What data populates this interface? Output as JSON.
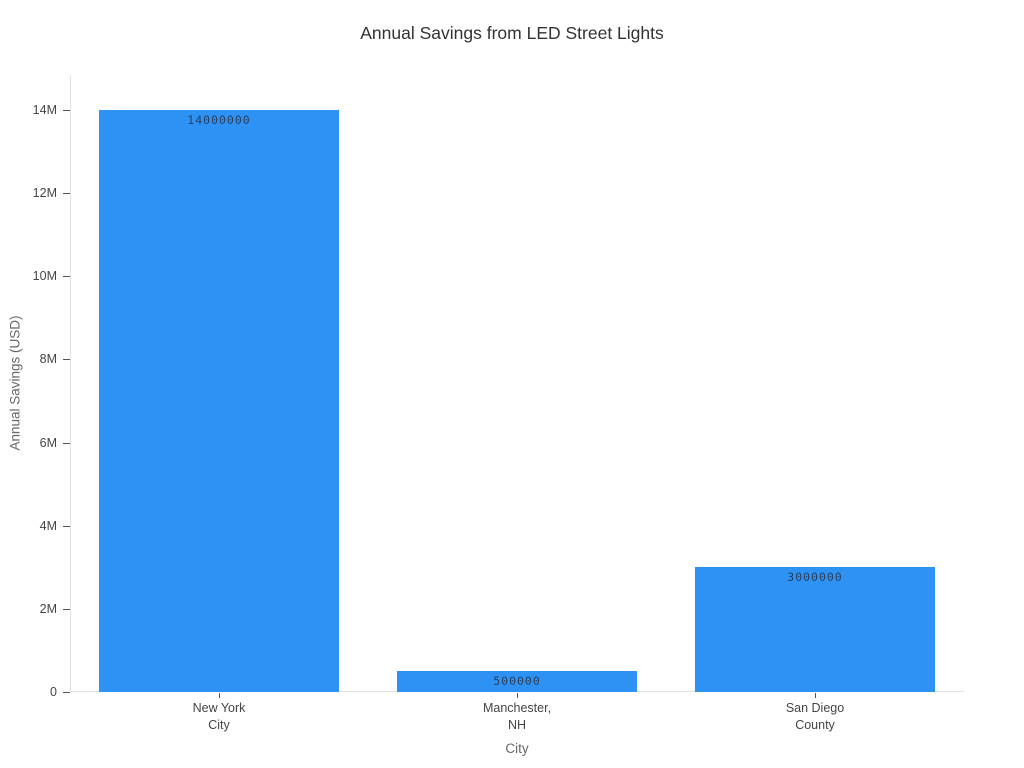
{
  "chart_data": {
    "type": "bar",
    "title": "Annual Savings from LED Street Lights",
    "xlabel": "City",
    "ylabel": "Annual Savings (USD)",
    "categories": [
      "New York City",
      "Manchester, NH",
      "San Diego County"
    ],
    "x_tick_lines": [
      [
        "New York",
        "City"
      ],
      [
        "Manchester,",
        "NH"
      ],
      [
        "San Diego",
        "County"
      ]
    ],
    "values": [
      14000000,
      500000,
      3000000
    ],
    "bar_labels": [
      "14000000",
      "500000",
      "3000000"
    ],
    "y_ticks": [
      {
        "value": 0,
        "label": "0"
      },
      {
        "value": 2000000,
        "label": "2M"
      },
      {
        "value": 4000000,
        "label": "4M"
      },
      {
        "value": 6000000,
        "label": "6M"
      },
      {
        "value": 8000000,
        "label": "8M"
      },
      {
        "value": 10000000,
        "label": "10M"
      },
      {
        "value": 12000000,
        "label": "12M"
      },
      {
        "value": 14000000,
        "label": "14M"
      }
    ],
    "ylim": [
      0,
      14840000
    ],
    "grid": false,
    "legend": false,
    "layout_hints": {
      "bar_value_label_position": "inside-top",
      "x_tick_label_lines": 2,
      "axis_lines": "left-and-bottom-only"
    },
    "colors": {
      "bar": "#2e92f5",
      "bar_label": "#2a3f5f",
      "title": "#323232",
      "tick_label": "#454545",
      "axis_title": "#676767",
      "axis_line": "#e0e0e0",
      "tick_mark": "#555555",
      "background": "#ffffff"
    }
  }
}
